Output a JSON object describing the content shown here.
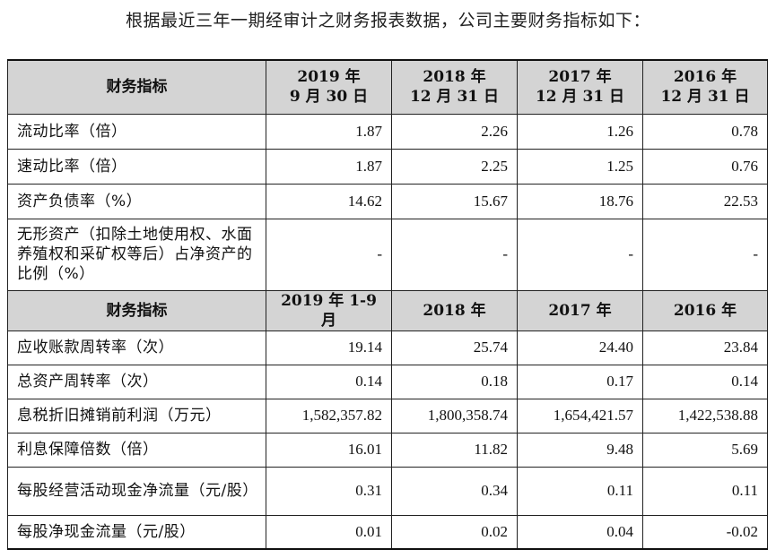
{
  "intro": "根据最近三年一期经审计之财务报表数据，公司主要财务指标如下：",
  "table1": {
    "header": {
      "label": "财务指标",
      "columns": [
        {
          "line1": "2019 年",
          "line2": "9 月 30 日"
        },
        {
          "line1": "2018 年",
          "line2": "12 月 31 日"
        },
        {
          "line1": "2017 年",
          "line2": "12 月 31 日"
        },
        {
          "line1": "2016 年",
          "line2": "12 月 31 日"
        }
      ]
    },
    "rows": [
      {
        "label": "流动比率（倍）",
        "values": [
          "1.87",
          "2.26",
          "1.26",
          "0.78"
        ]
      },
      {
        "label": "速动比率（倍）",
        "values": [
          "1.87",
          "2.25",
          "1.25",
          "0.76"
        ]
      },
      {
        "label": "资产负债率（%）",
        "values": [
          "14.62",
          "15.67",
          "18.76",
          "22.53"
        ]
      },
      {
        "label": "无形资产（扣除土地使用权、水面养殖权和采矿权等后）占净资产的比例（%）",
        "values": [
          "-",
          "-",
          "-",
          "-"
        ]
      }
    ]
  },
  "table2": {
    "header": {
      "label": "财务指标",
      "columns": [
        "2019 年 1-9 月",
        "2018 年",
        "2017 年",
        "2016 年"
      ]
    },
    "rows": [
      {
        "label": "应收账款周转率（次）",
        "values": [
          "19.14",
          "25.74",
          "24.40",
          "23.84"
        ]
      },
      {
        "label": "总资产周转率（次）",
        "values": [
          "0.14",
          "0.18",
          "0.17",
          "0.14"
        ]
      },
      {
        "label": "息税折旧摊销前利润（万元）",
        "values": [
          "1,582,357.82",
          "1,800,358.74",
          "1,654,421.57",
          "1,422,538.88"
        ]
      },
      {
        "label": "利息保障倍数（倍）",
        "values": [
          "16.01",
          "11.82",
          "9.48",
          "5.69"
        ]
      },
      {
        "label": "每股经营活动现金净流量（元/股）",
        "values": [
          "0.31",
          "0.34",
          "0.11",
          "0.11"
        ]
      },
      {
        "label": "每股净现金流量（元/股）",
        "values": [
          "0.01",
          "0.02",
          "0.04",
          "-0.02"
        ]
      }
    ]
  }
}
